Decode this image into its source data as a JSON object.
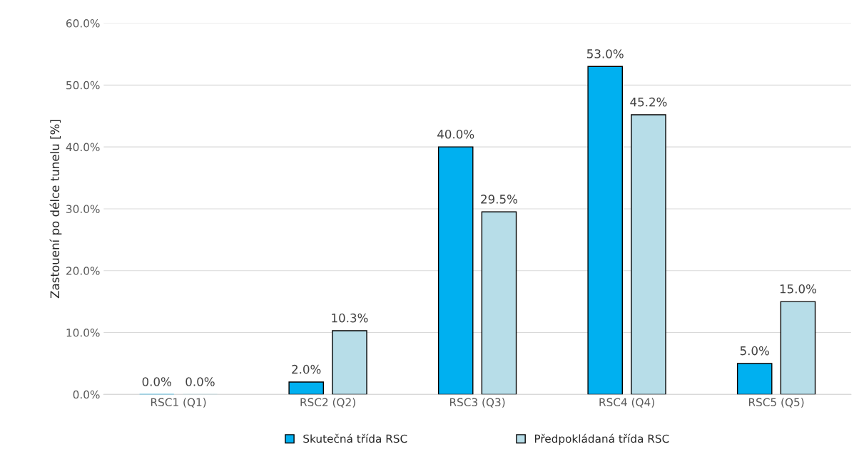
{
  "chart_data": {
    "type": "bar",
    "ylabel": "Zastouení po délce tunelu [%]",
    "categories": [
      "RSC1 (Q1)",
      "RSC2 (Q2)",
      "RSC3 (Q3)",
      "RSC4 (Q4)",
      "RSC5 (Q5)"
    ],
    "series": [
      {
        "name": "Skutečná třída RSC",
        "color": "#00b0f0",
        "values": [
          0,
          2,
          40,
          53,
          5
        ],
        "value_labels": [
          "0.0%",
          "2.0%",
          "40.0%",
          "53.0%",
          "5.0%"
        ]
      },
      {
        "name": "Předpokládaná třída RSC",
        "color": "#b7dde8",
        "values": [
          0,
          10.3,
          29.5,
          45.2,
          15
        ],
        "value_labels": [
          "0.0%",
          "10.3%",
          "29.5%",
          "45.2%",
          "15.0%"
        ]
      }
    ],
    "ylim": [
      0,
      60
    ],
    "yticks": [
      {
        "value": 0,
        "label": "0.0%"
      },
      {
        "value": 10,
        "label": "10.0%"
      },
      {
        "value": 20,
        "label": "20.0%"
      },
      {
        "value": 30,
        "label": "30.0%"
      },
      {
        "value": 40,
        "label": "40.0%"
      },
      {
        "value": 50,
        "label": "50.0%"
      },
      {
        "value": 60,
        "label": "60.0%"
      }
    ],
    "grid": "y",
    "legend": "bottom"
  }
}
